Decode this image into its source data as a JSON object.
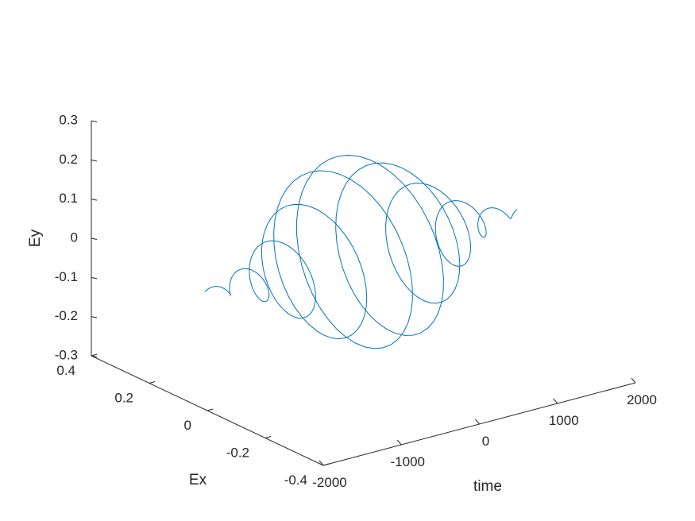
{
  "chart_data": {
    "type": "line",
    "projection": "3d",
    "title": "",
    "xlabel": "time",
    "ylabel": "Ex",
    "zlabel": "Ey",
    "xlim": [
      -2000,
      2000
    ],
    "ylim": [
      -0.4,
      0.4
    ],
    "zlim": [
      -0.3,
      0.3
    ],
    "x_ticks": [
      -2000,
      -1000,
      0,
      1000,
      2000
    ],
    "x_tick_labels": [
      "-2000",
      "-1000",
      "0",
      "1000",
      "2000"
    ],
    "y_ticks": [
      -0.4,
      -0.2,
      0,
      0.2,
      0.4
    ],
    "y_tick_labels": [
      "-0.4",
      "-0.2",
      "0",
      "0.2",
      "0.4"
    ],
    "z_ticks": [
      -0.3,
      -0.2,
      -0.1,
      0,
      0.1,
      0.2,
      0.3
    ],
    "z_tick_labels": [
      "-0.3",
      "-0.2",
      "-0.1",
      "0",
      "0.1",
      "0.2",
      "0.3"
    ],
    "grid": false,
    "series": [
      {
        "color": "#0072BD",
        "description": "Rotating field vector (Ex, Ey) with Gaussian envelope along time",
        "t_range": [
          -2000,
          2000
        ],
        "samples": 401,
        "amplitude": 0.23,
        "envelope_sigma": 1100,
        "period": 400
      }
    ]
  }
}
